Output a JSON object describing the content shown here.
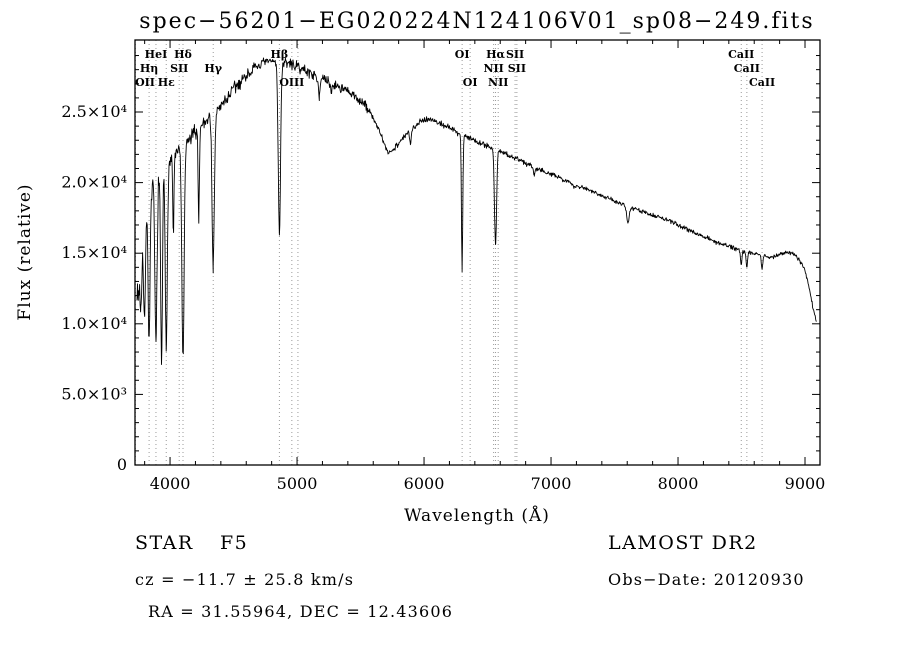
{
  "chart_data": {
    "type": "line",
    "title": "spec−56201−EG020224N124106V01_sp08−249.fits",
    "xlabel": "Wavelength (Å)",
    "ylabel": "Flux (relative)",
    "xlim": [
      3724,
      9118
    ],
    "ylim": [
      0,
      30100
    ],
    "grid": "off",
    "x_ticks": [
      {
        "v": 4000,
        "label": "4000"
      },
      {
        "v": 5000,
        "label": "5000"
      },
      {
        "v": 6000,
        "label": "6000"
      },
      {
        "v": 7000,
        "label": "7000"
      },
      {
        "v": 8000,
        "label": "8000"
      },
      {
        "v": 9000,
        "label": "9000"
      }
    ],
    "y_ticks": [
      {
        "v": 0,
        "label": "0"
      },
      {
        "v": 5000,
        "label": "5.0×10³"
      },
      {
        "v": 10000,
        "label": "1.0×10⁴"
      },
      {
        "v": 15000,
        "label": "1.5×10⁴"
      },
      {
        "v": 20000,
        "label": "2.0×10⁴"
      },
      {
        "v": 25000,
        "label": "2.5×10⁴"
      }
    ],
    "x_minor_step": 200,
    "y_minor_step": 1000,
    "sample_step": 4,
    "continuum": [
      [
        3740,
        13000
      ],
      [
        3760,
        14500
      ],
      [
        3780,
        16000
      ],
      [
        3800,
        17500
      ],
      [
        3830,
        18800
      ],
      [
        3860,
        19500
      ],
      [
        3900,
        20300
      ],
      [
        3950,
        21000
      ],
      [
        4000,
        21600
      ],
      [
        4050,
        22100
      ],
      [
        4100,
        22500
      ],
      [
        4150,
        23000
      ],
      [
        4200,
        23600
      ],
      [
        4250,
        24100
      ],
      [
        4300,
        24600
      ],
      [
        4350,
        25000
      ],
      [
        4400,
        25400
      ],
      [
        4450,
        26000
      ],
      [
        4500,
        26600
      ],
      [
        4550,
        27100
      ],
      [
        4600,
        27600
      ],
      [
        4650,
        28000
      ],
      [
        4700,
        28300
      ],
      [
        4750,
        28500
      ],
      [
        4800,
        28600
      ],
      [
        4850,
        28600
      ],
      [
        4900,
        28500
      ],
      [
        4950,
        28400
      ],
      [
        5000,
        28200
      ],
      [
        5050,
        28000
      ],
      [
        5100,
        27800
      ],
      [
        5150,
        27500
      ],
      [
        5200,
        27300
      ],
      [
        5250,
        27100
      ],
      [
        5300,
        26900
      ],
      [
        5350,
        26700
      ],
      [
        5400,
        26400
      ],
      [
        5450,
        26100
      ],
      [
        5500,
        25800
      ],
      [
        5550,
        25300
      ],
      [
        5600,
        24600
      ],
      [
        5650,
        23600
      ],
      [
        5700,
        22400
      ],
      [
        5720,
        22100
      ],
      [
        5750,
        22300
      ],
      [
        5800,
        22800
      ],
      [
        5850,
        23300
      ],
      [
        5900,
        23800
      ],
      [
        5950,
        24200
      ],
      [
        6000,
        24500
      ],
      [
        6050,
        24500
      ],
      [
        6100,
        24300
      ],
      [
        6150,
        24100
      ],
      [
        6200,
        23900
      ],
      [
        6250,
        23600
      ],
      [
        6300,
        23400
      ],
      [
        6350,
        23200
      ],
      [
        6400,
        23000
      ],
      [
        6450,
        22800
      ],
      [
        6500,
        22600
      ],
      [
        6550,
        22400
      ],
      [
        6600,
        22200
      ],
      [
        6650,
        22000
      ],
      [
        6700,
        21800
      ],
      [
        6750,
        21600
      ],
      [
        6800,
        21400
      ],
      [
        6850,
        21200
      ],
      [
        6900,
        21000
      ],
      [
        6950,
        20800
      ],
      [
        7000,
        20600
      ],
      [
        7100,
        20200
      ],
      [
        7200,
        19800
      ],
      [
        7300,
        19500
      ],
      [
        7400,
        19100
      ],
      [
        7500,
        18700
      ],
      [
        7600,
        18300
      ],
      [
        7700,
        18000
      ],
      [
        7800,
        17700
      ],
      [
        7900,
        17400
      ],
      [
        8000,
        17000
      ],
      [
        8100,
        16600
      ],
      [
        8200,
        16200
      ],
      [
        8300,
        15800
      ],
      [
        8400,
        15500
      ],
      [
        8500,
        15200
      ],
      [
        8600,
        15000
      ],
      [
        8700,
        14800
      ],
      [
        8750,
        14700
      ],
      [
        8800,
        14900
      ],
      [
        8850,
        15100
      ],
      [
        8900,
        15000
      ],
      [
        8950,
        14600
      ],
      [
        9000,
        13800
      ],
      [
        9040,
        12200
      ],
      [
        9070,
        10800
      ],
      [
        9090,
        10200
      ]
    ],
    "absorption_lines": [
      {
        "c": 3727,
        "bottom": 12500,
        "sigma": 6
      },
      {
        "c": 3750,
        "bottom": 12000,
        "sigma": 6
      },
      {
        "c": 3770,
        "bottom": 11000,
        "sigma": 7
      },
      {
        "c": 3798,
        "bottom": 10200,
        "sigma": 7
      },
      {
        "c": 3835,
        "bottom": 9200,
        "sigma": 8
      },
      {
        "c": 3889,
        "bottom": 8400,
        "sigma": 8
      },
      {
        "c": 3933,
        "bottom": 7000,
        "sigma": 7
      },
      {
        "c": 3970,
        "bottom": 8300,
        "sigma": 8
      },
      {
        "c": 4026,
        "bottom": 16500,
        "sigma": 5
      },
      {
        "c": 4102,
        "bottom": 7800,
        "sigma": 9
      },
      {
        "c": 4226,
        "bottom": 17500,
        "sigma": 5
      },
      {
        "c": 4340,
        "bottom": 14000,
        "sigma": 9
      },
      {
        "c": 4861,
        "bottom": 16500,
        "sigma": 9
      },
      {
        "c": 5175,
        "bottom": 26200,
        "sigma": 6
      },
      {
        "c": 5270,
        "bottom": 26300,
        "sigma": 5
      },
      {
        "c": 5893,
        "bottom": 22600,
        "sigma": 6
      },
      {
        "c": 6300,
        "bottom": 13700,
        "sigma": 5
      },
      {
        "c": 6563,
        "bottom": 15600,
        "sigma": 8
      },
      {
        "c": 6867,
        "bottom": 20600,
        "sigma": 7
      },
      {
        "c": 7186,
        "bottom": 19700,
        "sigma": 8
      },
      {
        "c": 7605,
        "bottom": 17200,
        "sigma": 10
      },
      {
        "c": 8498,
        "bottom": 14200,
        "sigma": 6
      },
      {
        "c": 8542,
        "bottom": 14000,
        "sigma": 6
      },
      {
        "c": 8662,
        "bottom": 13900,
        "sigma": 6
      }
    ],
    "noise": {
      "seed": 7,
      "bands": [
        {
          "upto": 4000,
          "amp": 900
        },
        {
          "upto": 4600,
          "amp": 700
        },
        {
          "upto": 5600,
          "amp": 450
        },
        {
          "upto": 6900,
          "amp": 260
        },
        {
          "upto": 9200,
          "amp": 190
        }
      ]
    },
    "line_annotations": [
      {
        "label": "OII",
        "wl": 3727,
        "row": 3
      },
      {
        "label": "Hη",
        "wl": 3835,
        "row": 2
      },
      {
        "label": "HeI",
        "wl": 3889,
        "row": 1
      },
      {
        "label": "Hε",
        "wl": 3970,
        "row": 3
      },
      {
        "label": "SII",
        "wl": 4072,
        "row": 2
      },
      {
        "label": "Hδ",
        "wl": 4102,
        "row": 1
      },
      {
        "label": "Hγ",
        "wl": 4340,
        "row": 2
      },
      {
        "label": "Hβ",
        "wl": 4861,
        "row": 1
      },
      {
        "label": "OIII",
        "wl": 4959,
        "row": 3
      },
      {
        "label": "",
        "wl": 5007,
        "row": 0
      },
      {
        "label": "OI",
        "wl": 6300,
        "row": 1
      },
      {
        "label": "OI",
        "wl": 6363,
        "row": 3
      },
      {
        "label": "NII",
        "wl": 6548,
        "row": 2
      },
      {
        "label": "Hα",
        "wl": 6563,
        "row": 1
      },
      {
        "label": "NII",
        "wl": 6584,
        "row": 3
      },
      {
        "label": "SII",
        "wl": 6717,
        "row": 1
      },
      {
        "label": "SII",
        "wl": 6731,
        "row": 2
      },
      {
        "label": "CaII",
        "wl": 8498,
        "row": 1
      },
      {
        "label": "CaII",
        "wl": 8542,
        "row": 2
      },
      {
        "label": "CaII",
        "wl": 8662,
        "row": 3
      }
    ]
  },
  "footer": {
    "class_label": "STAR",
    "subclass": "F5",
    "survey": "LAMOST DR2",
    "cz": "cz = −11.7 ± 25.8 km/s",
    "obs_date": "Obs−Date: 20120930",
    "ra_dec": "RA =  31.55964, DEC =  12.43606"
  }
}
